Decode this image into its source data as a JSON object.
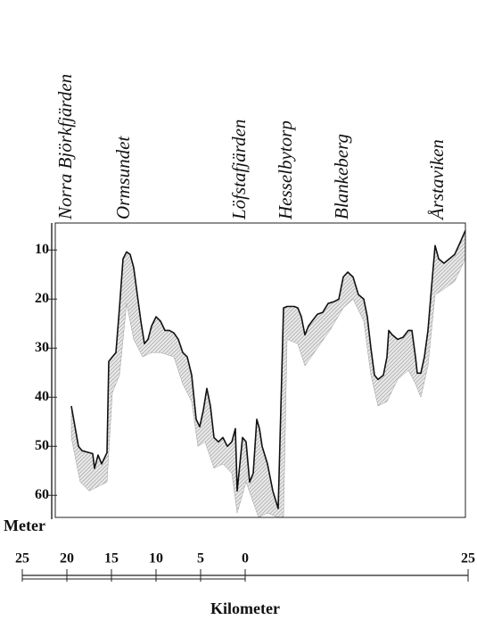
{
  "chart_data": {
    "type": "profile",
    "xlim": [
      -25,
      25
    ],
    "xticks": [
      {
        "value": -25,
        "label": "25"
      },
      {
        "value": -20,
        "label": "20"
      },
      {
        "value": -15,
        "label": "15"
      },
      {
        "value": -10,
        "label": "10"
      },
      {
        "value": -5,
        "label": "5"
      },
      0,
      25
    ],
    "x_label": "Kilometer",
    "frame_xlim": [
      -21.3,
      24.7
    ],
    "ylim": [
      4.5,
      64.5
    ],
    "y_reversed": true,
    "yticks": [
      10,
      20,
      30,
      40,
      50,
      60
    ],
    "y_label": "Meter",
    "annotations": [
      {
        "text": "Norra Björkfjärden",
        "x": -20
      },
      {
        "text": "Ormsundet",
        "x": -13.5
      },
      {
        "text": "Löfstafjärden",
        "x": -0.5
      },
      {
        "text": "Hesselbytorp",
        "x": 4.7
      },
      {
        "text": "Blankeberg",
        "x": 11
      },
      {
        "text": "Årstaviken",
        "x": 21.7
      }
    ],
    "series": [
      {
        "color": "#111111",
        "x": [
          -19.5,
          -18.7,
          -18.3,
          -17.5,
          -17.1,
          -16.9,
          -16.5,
          -16.1,
          -15.5,
          -15.3,
          -14.9,
          -14.5,
          -14.1,
          -13.7,
          -13.3,
          -12.9,
          -12.5,
          -12.1,
          -11.7,
          -11.3,
          -10.9,
          -10.5,
          -10,
          -9.5,
          -9,
          -8.5,
          -8,
          -7.5,
          -7,
          -6.5,
          -6,
          -5.5,
          -5.1,
          -4.7,
          -4.3,
          -3.9,
          -3.5,
          -3,
          -2.5,
          -2,
          -1.5,
          -1.1,
          -0.9,
          -0.7,
          -0.3,
          0.1,
          0.5,
          0.9,
          1.3,
          1.6,
          1.9,
          2.5,
          3.1,
          3.7,
          4.1,
          4.3,
          4.7,
          5.5,
          5.9,
          6.3,
          6.7,
          7.1,
          7.5,
          8.1,
          8.7,
          9.3,
          10,
          10.5,
          11,
          11.5,
          12.1,
          12.7,
          13.3,
          13.7,
          14.1,
          14.5,
          14.9,
          15.5,
          15.9,
          16.1,
          16.5,
          17.1,
          17.7,
          18.3,
          18.7,
          19.1,
          19.3,
          19.7,
          20.1,
          20.5,
          20.9,
          21.3,
          21.7,
          22.3,
          22.9,
          23.5,
          24.1,
          24.7
        ],
        "values": [
          41.8,
          50,
          50.9,
          51.3,
          51.5,
          54.5,
          51.8,
          53.6,
          51.3,
          32.7,
          31.8,
          30.9,
          21.8,
          11.8,
          10.4,
          10.9,
          13.6,
          19.1,
          24.5,
          29.1,
          28.2,
          25.5,
          23.6,
          24.5,
          26.4,
          26.4,
          26.9,
          28.2,
          30.9,
          31.8,
          35.5,
          44.5,
          46,
          42.7,
          38.2,
          41.8,
          48.2,
          49.1,
          48.2,
          50,
          49.1,
          46.4,
          59.1,
          55.5,
          48.2,
          49.1,
          57.3,
          55.5,
          44.5,
          46.4,
          50,
          53.6,
          59.1,
          62.7,
          35.5,
          21.8,
          21.5,
          21.5,
          21.8,
          23.6,
          27.3,
          25.5,
          24.5,
          23.1,
          22.7,
          20.9,
          20.5,
          20,
          15.5,
          14.5,
          15.5,
          19.1,
          20,
          23.6,
          30,
          35.5,
          36.4,
          35.5,
          31.8,
          26.4,
          27.3,
          28.2,
          27.8,
          26.4,
          26.4,
          31.8,
          35.1,
          35.1,
          31.8,
          26.4,
          17.6,
          9.1,
          11.8,
          12.7,
          11.8,
          10.9,
          8.5,
          6
        ]
      },
      {
        "color": "#8a8a8a",
        "x": [
          -19.5,
          -18.5,
          -17.5,
          -16.5,
          -15.5,
          -14.9,
          -14.1,
          -13.3,
          -12.5,
          -11.5,
          -10.5,
          -9.5,
          -8,
          -7,
          -6,
          -5.3,
          -4.5,
          -3.5,
          -2.5,
          -1.5,
          -0.9,
          0.1,
          1.5,
          2.5,
          3.7,
          4.3,
          4.7,
          5.9,
          6.7,
          8.1,
          9.5,
          11,
          12.1,
          13.3,
          14.1,
          14.9,
          15.9,
          17.1,
          18.3,
          19.1,
          19.7,
          20.5,
          21.3,
          22.1,
          23.5,
          24.7
        ],
        "values": [
          48.2,
          57.3,
          59.1,
          58.2,
          57.3,
          39.1,
          35.5,
          20.9,
          28.2,
          31.8,
          30.9,
          30.9,
          31.8,
          37.3,
          40.9,
          50,
          49.1,
          54.5,
          53.6,
          55.5,
          63.6,
          57.3,
          64.5,
          63.6,
          64.5,
          64.5,
          28.2,
          29.1,
          33.6,
          30,
          26.4,
          21.8,
          20,
          24.5,
          35.5,
          41.8,
          40.9,
          36.4,
          34.5,
          37.3,
          40,
          33.6,
          19.1,
          18.2,
          16.4,
          11.8
        ]
      }
    ]
  }
}
